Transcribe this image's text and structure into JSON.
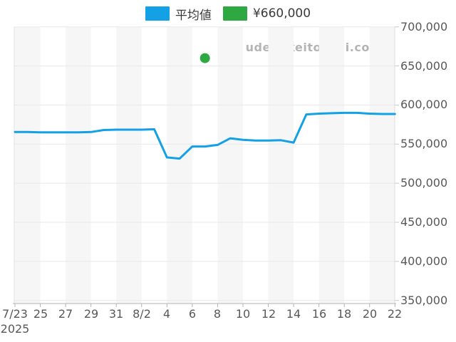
{
  "legend": {
    "items": [
      {
        "label": "平均値",
        "color": "#14A0E5"
      },
      {
        "label": "¥660,000",
        "color": "#2EA942"
      }
    ]
  },
  "watermark": {
    "text": "udedokeitoushi.com",
    "color": "#B4B4B4"
  },
  "chart_data": {
    "type": "line",
    "title": "",
    "xlabel": "",
    "ylabel": "",
    "x": [
      "7/23",
      "7/24",
      "7/25",
      "7/26",
      "7/27",
      "7/28",
      "7/29",
      "7/30",
      "7/31",
      "8/1",
      "8/2",
      "8/3",
      "8/4",
      "8/5",
      "8/6",
      "8/7",
      "8/8",
      "8/9",
      "8/10",
      "8/11",
      "8/12",
      "8/13",
      "8/14",
      "8/15",
      "8/16",
      "8/17",
      "8/18",
      "8/19",
      "8/20",
      "8/21",
      "8/22"
    ],
    "series": [
      {
        "name": "平均値",
        "color": "#14A0E5",
        "values": [
          565500,
          565500,
          565000,
          565000,
          565000,
          565000,
          565500,
          568000,
          568500,
          568500,
          568500,
          569000,
          533000,
          531500,
          547000,
          547000,
          549000,
          557500,
          555500,
          554500,
          554500,
          555000,
          552000,
          588000,
          589000,
          589500,
          590000,
          590000,
          589000,
          588500,
          588500
        ]
      }
    ],
    "markers": [
      {
        "name": "¥660,000",
        "color": "#2EA942",
        "x": "8/7",
        "y": 660000
      }
    ],
    "x_tick_labels": [
      "7/23",
      "25",
      "27",
      "29",
      "31",
      "8/2",
      "4",
      "6",
      "8",
      "10",
      "12",
      "14",
      "16",
      "18",
      "20",
      "22"
    ],
    "x_secondary_label": "2025",
    "y_ticks": [
      350000,
      400000,
      450000,
      500000,
      550000,
      600000,
      650000,
      700000
    ],
    "y_tick_labels": [
      "350,000",
      "400,000",
      "450,000",
      "500,000",
      "550,000",
      "600,000",
      "650,000",
      "700,000"
    ],
    "ylim": [
      347000,
      697000
    ],
    "grid": "horizontal gridlines with alternating vertical bands (2-day width)",
    "legend_position": "top",
    "colors": {
      "band": "#F6F6F6",
      "gridline": "#E8E8E8",
      "side_border": "#DCDCDC",
      "bottom_axis": "#B3B3B3",
      "tick": "#C7C7C7",
      "axis_label": "#58585A"
    }
  }
}
